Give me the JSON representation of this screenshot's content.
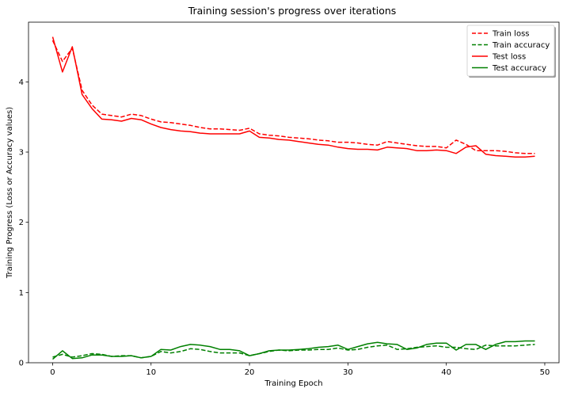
{
  "chart_data": {
    "type": "line",
    "title": "Training session's progress over iterations",
    "xlabel": "Training Epoch",
    "ylabel": "Training Progress (Loss or Accuracy values)",
    "xlim": [
      -2.45,
      51.45
    ],
    "ylim": [
      0,
      4.85
    ],
    "xticks": [
      0,
      10,
      20,
      30,
      40,
      50
    ],
    "yticks": [
      0,
      1,
      2,
      3,
      4
    ],
    "grid": false,
    "legend_position": "top-right",
    "x": [
      0,
      1,
      2,
      3,
      4,
      5,
      6,
      7,
      8,
      9,
      10,
      11,
      12,
      13,
      14,
      15,
      16,
      17,
      18,
      19,
      20,
      21,
      22,
      23,
      24,
      25,
      26,
      27,
      28,
      29,
      30,
      31,
      32,
      33,
      34,
      35,
      36,
      37,
      38,
      39,
      40,
      41,
      42,
      43,
      44,
      45,
      46,
      47,
      48,
      49
    ],
    "series": [
      {
        "name": "Train loss",
        "color": "#ff0000",
        "dash": "dashed",
        "values": [
          4.59,
          4.29,
          4.48,
          3.88,
          3.67,
          3.54,
          3.52,
          3.5,
          3.54,
          3.52,
          3.47,
          3.43,
          3.42,
          3.4,
          3.38,
          3.35,
          3.33,
          3.33,
          3.32,
          3.31,
          3.34,
          3.26,
          3.24,
          3.23,
          3.21,
          3.2,
          3.19,
          3.17,
          3.16,
          3.14,
          3.14,
          3.13,
          3.11,
          3.1,
          3.15,
          3.13,
          3.11,
          3.09,
          3.08,
          3.08,
          3.06,
          3.17,
          3.11,
          3.02,
          3.02,
          3.02,
          3.01,
          2.99,
          2.98,
          2.98
        ]
      },
      {
        "name": "Train accuracy",
        "color": "#008000",
        "dash": "dashed",
        "values": [
          0.08,
          0.12,
          0.08,
          0.1,
          0.13,
          0.12,
          0.09,
          0.1,
          0.1,
          0.07,
          0.09,
          0.16,
          0.14,
          0.16,
          0.2,
          0.19,
          0.16,
          0.14,
          0.14,
          0.14,
          0.1,
          0.13,
          0.16,
          0.18,
          0.17,
          0.18,
          0.18,
          0.19,
          0.19,
          0.21,
          0.18,
          0.19,
          0.22,
          0.24,
          0.25,
          0.19,
          0.2,
          0.22,
          0.23,
          0.24,
          0.22,
          0.22,
          0.2,
          0.19,
          0.25,
          0.24,
          0.24,
          0.24,
          0.25,
          0.26
        ]
      },
      {
        "name": "Test loss",
        "color": "#ff0000",
        "dash": "solid",
        "values": [
          4.64,
          4.14,
          4.5,
          3.82,
          3.62,
          3.47,
          3.46,
          3.44,
          3.48,
          3.46,
          3.4,
          3.35,
          3.32,
          3.3,
          3.29,
          3.27,
          3.26,
          3.26,
          3.26,
          3.26,
          3.3,
          3.21,
          3.2,
          3.18,
          3.17,
          3.15,
          3.13,
          3.11,
          3.1,
          3.07,
          3.05,
          3.04,
          3.04,
          3.03,
          3.07,
          3.06,
          3.05,
          3.02,
          3.02,
          3.03,
          3.02,
          2.98,
          3.07,
          3.09,
          2.97,
          2.95,
          2.94,
          2.93,
          2.93,
          2.94
        ]
      },
      {
        "name": "Test accuracy",
        "color": "#008000",
        "dash": "solid",
        "values": [
          0.05,
          0.17,
          0.06,
          0.07,
          0.11,
          0.11,
          0.09,
          0.09,
          0.1,
          0.07,
          0.09,
          0.19,
          0.18,
          0.23,
          0.26,
          0.25,
          0.23,
          0.19,
          0.19,
          0.17,
          0.1,
          0.13,
          0.17,
          0.18,
          0.18,
          0.19,
          0.2,
          0.22,
          0.23,
          0.25,
          0.19,
          0.23,
          0.27,
          0.29,
          0.27,
          0.26,
          0.19,
          0.21,
          0.26,
          0.28,
          0.28,
          0.18,
          0.26,
          0.26,
          0.19,
          0.26,
          0.3,
          0.3,
          0.31,
          0.31
        ]
      }
    ]
  }
}
